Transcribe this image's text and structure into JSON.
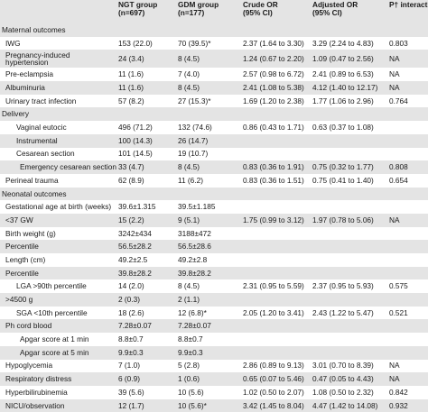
{
  "headers": [
    "",
    "NGT group\n(n=697)",
    "GDM group\n(n=177)",
    "Crude OR\n(95% CI)",
    "Adjusted OR\n(95% CI)",
    "P† interaction"
  ],
  "rows": [
    {
      "type": "section",
      "label": "Maternal outcomes"
    },
    {
      "type": "row",
      "label": "IWG",
      "ngt": "153 (22.0)",
      "gdm": "70 (39.5)*",
      "crude": "2.37 (1.64 to 3.30)",
      "adjusted": "3.29 (2.24 to 4.83)",
      "p": "0.803"
    },
    {
      "type": "row",
      "label": "Pregnancy-induced hypertension",
      "ngt": "24 (3.4)",
      "gdm": "8 (4.5)",
      "crude": "1.24 (0.67 to 2.20)",
      "adjusted": "1.09 (0.47 to 2.56)",
      "p": "NA",
      "twoline": true
    },
    {
      "type": "row",
      "label": "Pre-eclampsia",
      "ngt": "11 (1.6)",
      "gdm": "7 (4.0)",
      "crude": "2.57 (0.98 to 6.72)",
      "adjusted": "2.41 (0.89 to 6.53)",
      "p": "NA"
    },
    {
      "type": "row",
      "label": "Albuminuria",
      "ngt": "11 (1.6)",
      "gdm": "8 (4.5)",
      "crude": "2.41 (1.08 to 5.38)",
      "adjusted": "4.12 (1.40 to 12.17)",
      "p": "NA"
    },
    {
      "type": "row",
      "label": "Urinary tract infection",
      "ngt": "57 (8.2)",
      "gdm": "27 (15.3)*",
      "crude": "1.69 (1.20 to 2.38)",
      "adjusted": "1.77 (1.06 to 2.96)",
      "p": "0.764"
    },
    {
      "type": "section",
      "label": "Delivery"
    },
    {
      "type": "row",
      "label": "Vaginal eutocic",
      "indent": 1,
      "ngt": "496 (71.2)",
      "gdm": "132 (74.6)",
      "crude": "0.86 (0.43 to 1.71)",
      "adjusted": "0.63 (0.37 to 1.08)",
      "p": ""
    },
    {
      "type": "row",
      "label": "Instrumental",
      "indent": 1,
      "ngt": "100 (14.3)",
      "gdm": "26 (14.7)",
      "crude": "",
      "adjusted": "",
      "p": ""
    },
    {
      "type": "row",
      "label": "Cesarean section",
      "indent": 1,
      "ngt": "101 (14.5)",
      "gdm": "19 (10.7)",
      "crude": "",
      "adjusted": "",
      "p": ""
    },
    {
      "type": "row",
      "label": "Emergency cesarean section",
      "indent": 2,
      "ngt": "33 (4.7)",
      "gdm": "8 (4.5)",
      "crude": "0.83 (0.36 to 1.91)",
      "adjusted": "0.75 (0.32 to 1.77)",
      "p": "0.808"
    },
    {
      "type": "row",
      "label": "Perineal trauma",
      "ngt": "62 (8.9)",
      "gdm": "11 (6.2)",
      "crude": "0.83 (0.36 to 1.51)",
      "adjusted": "0.75 (0.41 to 1.40)",
      "p": "0.654"
    },
    {
      "type": "section",
      "label": "Neonatal outcomes"
    },
    {
      "type": "row",
      "label": "Gestational age at birth (weeks)",
      "ngt": "39.6±1.315",
      "gdm": "39.5±1.185",
      "crude": "",
      "adjusted": "",
      "p": ""
    },
    {
      "type": "row",
      "label": "<37 GW",
      "ngt": "15 (2.2)",
      "gdm": "9 (5.1)",
      "crude": "1.75 (0.99 to 3.12)",
      "adjusted": "1.97 (0.78 to 5.06)",
      "p": "NA"
    },
    {
      "type": "row",
      "label": "Birth weight (g)",
      "ngt": "3242±434",
      "gdm": "3188±472",
      "crude": "",
      "adjusted": "",
      "p": ""
    },
    {
      "type": "row",
      "label": "Percentile",
      "ngt": "56.5±28.2",
      "gdm": "56.5±28.6",
      "crude": "",
      "adjusted": "",
      "p": ""
    },
    {
      "type": "row",
      "label": "Length (cm)",
      "ngt": "49.2±2.5",
      "gdm": "49.2±2.8",
      "crude": "",
      "adjusted": "",
      "p": ""
    },
    {
      "type": "row",
      "label": "Percentile",
      "ngt": "39.8±28.2",
      "gdm": "39.8±28.2",
      "crude": "",
      "adjusted": "",
      "p": ""
    },
    {
      "type": "row",
      "label": "LGA >90th percentile",
      "indent": 1,
      "ngt": "14 (2.0)",
      "gdm": "8 (4.5)",
      "crude": "2.31 (0.95 to 5.59)",
      "adjusted": "2.37 (0.95 to 5.93)",
      "p": "0.575"
    },
    {
      "type": "row",
      "label": ">4500 g",
      "ngt": "2 (0.3)",
      "gdm": "2 (1.1)",
      "crude": "",
      "adjusted": "",
      "p": ""
    },
    {
      "type": "row",
      "label": "SGA <10th percentile",
      "indent": 1,
      "ngt": "18 (2.6)",
      "gdm": "12 (6.8)*",
      "crude": "2.05 (1.20 to 3.41)",
      "adjusted": "2.43 (1.22 to 5.47)",
      "p": "0.521"
    },
    {
      "type": "row",
      "label": "Ph cord blood",
      "ngt": "7.28±0.07",
      "gdm": "7.28±0.07",
      "crude": "",
      "adjusted": "",
      "p": ""
    },
    {
      "type": "row",
      "label": "Apgar score at 1 min",
      "indent": 2,
      "ngt": "8.8±0.7",
      "gdm": "8.8±0.7",
      "crude": "",
      "adjusted": "",
      "p": ""
    },
    {
      "type": "row",
      "label": "Apgar score at 5 min",
      "indent": 2,
      "ngt": "9.9±0.3",
      "gdm": "9.9±0.3",
      "crude": "",
      "adjusted": "",
      "p": ""
    },
    {
      "type": "row",
      "label": "Hypoglycemia",
      "ngt": "7 (1.0)",
      "gdm": "5 (2.8)",
      "crude": "2.86 (0.89 to 9.13)",
      "adjusted": "3.01 (0.70 to 8.39)",
      "p": "NA"
    },
    {
      "type": "row",
      "label": "Respiratory distress",
      "ngt": "6 (0.9)",
      "gdm": "1 (0.6)",
      "crude": "0.65 (0.07 to 5.46)",
      "adjusted": "0.47 (0.05 to 4.43)",
      "p": "NA"
    },
    {
      "type": "row",
      "label": "Hyperbilirubinemia",
      "ngt": "39 (5.6)",
      "gdm": "10 (5.6)",
      "crude": "1.02 (0.50 to 2.07)",
      "adjusted": "1.08 (0.50 to 2.32)",
      "p": "0.842"
    },
    {
      "type": "row",
      "label": "NICU/observation",
      "ngt": "12 (1.7)",
      "gdm": "10 (5.6)*",
      "crude": "3.42 (1.45 to 8.04)",
      "adjusted": "4.47 (1.42 to 14.08)",
      "p": "0.932"
    }
  ]
}
